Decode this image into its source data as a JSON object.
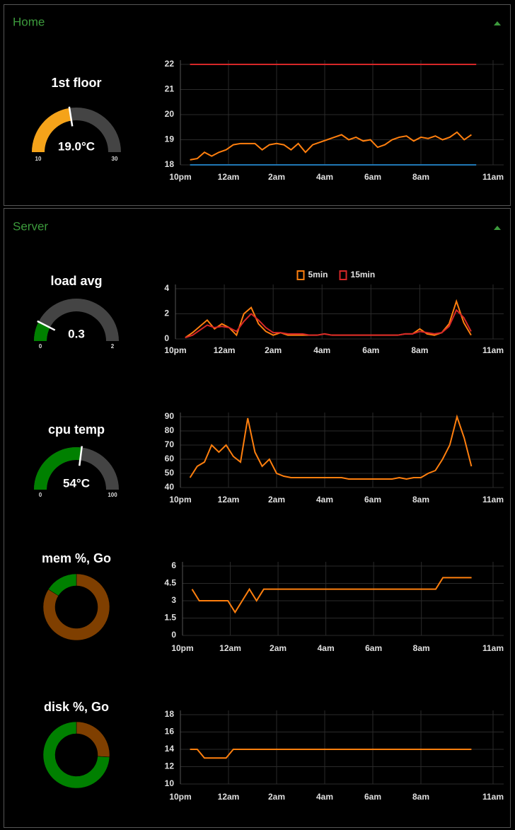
{
  "groups": [
    {
      "title": "Home",
      "items": [
        {
          "type": "gauge",
          "title": "1st floor",
          "value": 19,
          "value_label": "19.0°C",
          "min": 10,
          "max": 30,
          "color": "#f5a31a"
        },
        {
          "type": "line",
          "xlim": [
            0,
            13
          ],
          "xticks": [
            {
              "value": 0,
              "label": "10pm"
            },
            {
              "value": 2,
              "label": "12am"
            },
            {
              "value": 4,
              "label": "2am"
            },
            {
              "value": 6,
              "label": "4am"
            },
            {
              "value": 8,
              "label": "6am"
            },
            {
              "value": 10,
              "label": "8am"
            },
            {
              "value": 13,
              "label": "11am"
            }
          ],
          "ylim": [
            18,
            22
          ],
          "yticks": [
            18,
            19,
            20,
            21,
            22
          ],
          "x": [
            0.4,
            0.7,
            1,
            1.3,
            1.6,
            1.9,
            2.2,
            2.5,
            2.8,
            3.1,
            3.4,
            3.7,
            4,
            4.3,
            4.6,
            4.9,
            5.2,
            5.5,
            5.8,
            6.1,
            6.4,
            6.7,
            7,
            7.3,
            7.6,
            7.9,
            8.2,
            8.5,
            8.8,
            9.1,
            9.4,
            9.7,
            10,
            10.3,
            10.6,
            10.9,
            11.2,
            11.5,
            11.8,
            12.1
          ],
          "series": [
            {
              "color": "#d62728",
              "x": [
                0.4,
                12.3
              ],
              "values": [
                22,
                22
              ]
            },
            {
              "color": "#ff7f0e",
              "values": [
                18.2,
                18.25,
                18.5,
                18.35,
                18.5,
                18.6,
                18.8,
                18.85,
                18.85,
                18.85,
                18.6,
                18.8,
                18.85,
                18.8,
                18.6,
                18.85,
                18.5,
                18.8,
                18.9,
                19,
                19.1,
                19.2,
                19,
                19.1,
                18.95,
                19,
                18.7,
                18.8,
                19,
                19.1,
                19.15,
                18.95,
                19.1,
                19.05,
                19.15,
                19,
                19.1,
                19.3,
                19,
                19.2
              ]
            },
            {
              "color": "#1f77b4",
              "x": [
                0.4,
                12.3
              ],
              "values": [
                18,
                18
              ]
            }
          ]
        }
      ]
    },
    {
      "title": "Server",
      "items": [
        {
          "type": "gauge",
          "title": "load avg",
          "value": 0.3,
          "min": 0,
          "max": 2,
          "color": "#008000"
        },
        {
          "type": "line",
          "legend": "top",
          "xlim": [
            0,
            13
          ],
          "xticks": [
            {
              "value": 0,
              "label": "10pm"
            },
            {
              "value": 2,
              "label": "12am"
            },
            {
              "value": 4,
              "label": "2am"
            },
            {
              "value": 6,
              "label": "4am"
            },
            {
              "value": 8,
              "label": "6am"
            },
            {
              "value": 10,
              "label": "8am"
            },
            {
              "value": 13,
              "label": "11am"
            }
          ],
          "ylim": [
            0,
            4
          ],
          "yticks": [
            0,
            2,
            4
          ],
          "x": [
            0.4,
            0.7,
            1,
            1.3,
            1.6,
            1.9,
            2.2,
            2.5,
            2.8,
            3.1,
            3.4,
            3.7,
            4,
            4.3,
            4.6,
            4.9,
            5.2,
            5.5,
            5.8,
            6.1,
            6.4,
            6.7,
            7,
            7.3,
            7.6,
            7.9,
            8.2,
            8.5,
            8.8,
            9.1,
            9.4,
            9.7,
            10,
            10.3,
            10.6,
            10.9,
            11.2,
            11.5,
            11.8,
            12.1
          ],
          "series": [
            {
              "name": "5min",
              "color": "#ff7f0e",
              "values": [
                0.1,
                0.5,
                1,
                1.5,
                0.8,
                1.2,
                0.9,
                0.3,
                2,
                2.5,
                1.2,
                0.6,
                0.3,
                0.5,
                0.3,
                0.3,
                0.3,
                0.3,
                0.3,
                0.4,
                0.3,
                0.3,
                0.3,
                0.3,
                0.3,
                0.3,
                0.3,
                0.3,
                0.3,
                0.3,
                0.4,
                0.4,
                0.8,
                0.4,
                0.3,
                0.5,
                1.2,
                3,
                1.3,
                0.3
              ]
            },
            {
              "name": "15min",
              "color": "#d62728",
              "values": [
                0.1,
                0.3,
                0.7,
                1.1,
                0.9,
                1,
                0.9,
                0.6,
                1.4,
                2,
                1.5,
                0.9,
                0.5,
                0.5,
                0.4,
                0.4,
                0.4,
                0.3,
                0.3,
                0.4,
                0.3,
                0.3,
                0.3,
                0.3,
                0.3,
                0.3,
                0.3,
                0.3,
                0.3,
                0.3,
                0.4,
                0.4,
                0.6,
                0.5,
                0.4,
                0.5,
                1,
                2.3,
                1.7,
                0.6
              ]
            }
          ]
        },
        {
          "type": "gauge",
          "title": "cpu temp",
          "value": 54,
          "value_label": "54°C",
          "min": 0,
          "max": 100,
          "color": "#008000"
        },
        {
          "type": "line",
          "xlim": [
            0,
            13
          ],
          "xticks": [
            {
              "value": 0,
              "label": "10pm"
            },
            {
              "value": 2,
              "label": "12am"
            },
            {
              "value": 4,
              "label": "2am"
            },
            {
              "value": 6,
              "label": "4am"
            },
            {
              "value": 8,
              "label": "6am"
            },
            {
              "value": 10,
              "label": "8am"
            },
            {
              "value": 13,
              "label": "11am"
            }
          ],
          "ylim": [
            40,
            90
          ],
          "yticks": [
            40,
            50,
            60,
            70,
            80,
            90
          ],
          "x": [
            0.4,
            0.7,
            1,
            1.3,
            1.6,
            1.9,
            2.2,
            2.5,
            2.8,
            3.1,
            3.4,
            3.7,
            4,
            4.3,
            4.6,
            4.9,
            5.2,
            5.5,
            5.8,
            6.1,
            6.4,
            6.7,
            7,
            7.3,
            7.6,
            7.9,
            8.2,
            8.5,
            8.8,
            9.1,
            9.4,
            9.7,
            10,
            10.3,
            10.6,
            10.9,
            11.2,
            11.5,
            11.8,
            12.1
          ],
          "series": [
            {
              "color": "#ff7f0e",
              "values": [
                47,
                55,
                58,
                70,
                65,
                70,
                62,
                58,
                89,
                65,
                55,
                60,
                50,
                48,
                47,
                47,
                47,
                47,
                47,
                47,
                47,
                47,
                46,
                46,
                46,
                46,
                46,
                46,
                46,
                47,
                46,
                47,
                47,
                50,
                52,
                60,
                70,
                90,
                75,
                55
              ]
            }
          ]
        },
        {
          "type": "donut",
          "title": "mem %, Go",
          "values": [
            84,
            16
          ],
          "colors": [
            "#7f3f00",
            "#008000"
          ]
        },
        {
          "type": "line",
          "xlim": [
            0,
            13
          ],
          "xticks": [
            {
              "value": 0,
              "label": "10pm"
            },
            {
              "value": 2,
              "label": "12am"
            },
            {
              "value": 4,
              "label": "2am"
            },
            {
              "value": 6,
              "label": "4am"
            },
            {
              "value": 8,
              "label": "6am"
            },
            {
              "value": 10,
              "label": "8am"
            },
            {
              "value": 13,
              "label": "11am"
            }
          ],
          "ylim": [
            0,
            6
          ],
          "yticks": [
            0,
            1.5,
            3,
            4.5,
            6
          ],
          "x": [
            0.4,
            0.7,
            1,
            1.3,
            1.6,
            1.9,
            2.2,
            2.5,
            2.8,
            3.1,
            3.4,
            3.7,
            4,
            4.3,
            4.6,
            4.9,
            5.2,
            5.5,
            5.8,
            6.1,
            6.4,
            6.7,
            7,
            7.3,
            7.6,
            7.9,
            8.2,
            8.5,
            8.8,
            9.1,
            9.4,
            9.7,
            10,
            10.3,
            10.6,
            10.9,
            11.2,
            11.5,
            11.8,
            12.1
          ],
          "series": [
            {
              "color": "#ff7f0e",
              "values": [
                4,
                3,
                3,
                3,
                3,
                3,
                2,
                3,
                4,
                3,
                4,
                4,
                4,
                4,
                4,
                4,
                4,
                4,
                4,
                4,
                4,
                4,
                4,
                4,
                4,
                4,
                4,
                4,
                4,
                4,
                4,
                4,
                4,
                4,
                4,
                5,
                5,
                5,
                5,
                5
              ]
            }
          ]
        },
        {
          "type": "donut",
          "title": "disk %, Go",
          "values": [
            26,
            74
          ],
          "colors": [
            "#7f3f00",
            "#008000"
          ]
        },
        {
          "type": "line",
          "xlim": [
            0,
            13
          ],
          "xticks": [
            {
              "value": 0,
              "label": "10pm"
            },
            {
              "value": 2,
              "label": "12am"
            },
            {
              "value": 4,
              "label": "2am"
            },
            {
              "value": 6,
              "label": "4am"
            },
            {
              "value": 8,
              "label": "6am"
            },
            {
              "value": 10,
              "label": "8am"
            },
            {
              "value": 13,
              "label": "11am"
            }
          ],
          "ylim": [
            10,
            18
          ],
          "yticks": [
            10,
            12,
            14,
            16,
            18
          ],
          "x": [
            0.4,
            0.7,
            1,
            1.3,
            1.6,
            1.9,
            2.2,
            2.5,
            2.8,
            3.1,
            3.4,
            3.7,
            4,
            4.3,
            4.6,
            4.9,
            5.2,
            5.5,
            5.8,
            6.1,
            6.4,
            6.7,
            7,
            7.3,
            7.6,
            7.9,
            8.2,
            8.5,
            8.8,
            9.1,
            9.4,
            9.7,
            10,
            10.3,
            10.6,
            10.9,
            11.2,
            11.5,
            11.8,
            12.1
          ],
          "series": [
            {
              "color": "#ff7f0e",
              "values": [
                14,
                14,
                13,
                13,
                13,
                13,
                14,
                14,
                14,
                14,
                14,
                14,
                14,
                14,
                14,
                14,
                14,
                14,
                14,
                14,
                14,
                14,
                14,
                14,
                14,
                14,
                14,
                14,
                14,
                14,
                14,
                14,
                14,
                14,
                14,
                14,
                14,
                14,
                14,
                14
              ]
            }
          ]
        }
      ]
    }
  ]
}
